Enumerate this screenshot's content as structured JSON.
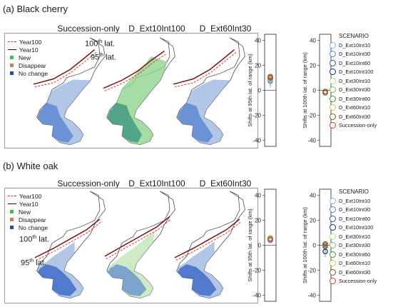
{
  "legend_items": [
    {
      "label": "Year100",
      "kind": "dashed",
      "color": "#e0362a"
    },
    {
      "label": "Year10",
      "kind": "solid",
      "color": "#7a1216"
    },
    {
      "label": "New",
      "kind": "square",
      "color": "#3fbf3f"
    },
    {
      "label": "Disappear",
      "kind": "square",
      "color": "#d07a5a"
    },
    {
      "label": "No change",
      "kind": "square",
      "color": "#1f4fbf"
    }
  ],
  "lat_labels": {
    "p100": "100",
    "p95": "95",
    "suffix_sup": "th",
    "suffix": " lat."
  },
  "scenarios": [
    {
      "label": "D_Ext10Int10",
      "color": "#7fb4e0"
    },
    {
      "label": "D_Ext10Int30",
      "color": "#4f86c6"
    },
    {
      "label": "D_Ext10Int60",
      "color": "#2a5aa8"
    },
    {
      "label": "D_Ext10Int100",
      "color": "#0f2a6e"
    },
    {
      "label": "D_Ext30Int10",
      "color": "#b8e07a"
    },
    {
      "label": "D_Ext30Int30",
      "color": "#7ec24a"
    },
    {
      "label": "D_Ext30Int60",
      "color": "#3f9a32"
    },
    {
      "label": "D_Ext60Int10",
      "color": "#d8c83a"
    },
    {
      "label": "D_Ext60Int30",
      "color": "#7a6418"
    },
    {
      "label": "Succession-only",
      "color": "#e0362a"
    }
  ],
  "scenario_title": "SCENARIO",
  "axis_95": "Shifts at 95th lat. of range (km)",
  "axis_100": "Shifts at 100th lat. of range (km)",
  "chart_data": [
    {
      "type": "scatter",
      "panel": "(a) Black cherry",
      "map_titles": [
        "Succession-only",
        "D_Ext10Int100",
        "D_Ext60Int30"
      ],
      "ylim": [
        -45,
        45
      ],
      "yticks": [
        -40,
        -20,
        0,
        20,
        40
      ],
      "series": [
        {
          "ylabel": "Shifts at 95th lat. of range (km)",
          "values": [
            7,
            8,
            9,
            9,
            9,
            10,
            10,
            11,
            11,
            10
          ]
        },
        {
          "ylabel": "Shifts at 100th lat. of range (km)",
          "values": [
            -2,
            -2,
            -1,
            -2,
            -1,
            -1,
            -2,
            -1,
            -1,
            -1
          ]
        }
      ]
    },
    {
      "type": "scatter",
      "panel": "(b) White oak",
      "map_titles": [
        "Succession-only",
        "D_Ext10Int100",
        "D_Ext60Int30"
      ],
      "ylim": [
        -45,
        45
      ],
      "yticks": [
        -40,
        -20,
        0,
        20,
        40
      ],
      "series": [
        {
          "ylabel": "Shifts at 95th lat. of range (km)",
          "values": [
            4,
            4,
            5,
            5,
            5,
            5,
            6,
            6,
            5,
            5
          ]
        },
        {
          "ylabel": "Shifts at 100th lat. of range (km)",
          "values": [
            1,
            1,
            -1,
            -5,
            1,
            1,
            0,
            1,
            1,
            1
          ]
        }
      ]
    }
  ]
}
